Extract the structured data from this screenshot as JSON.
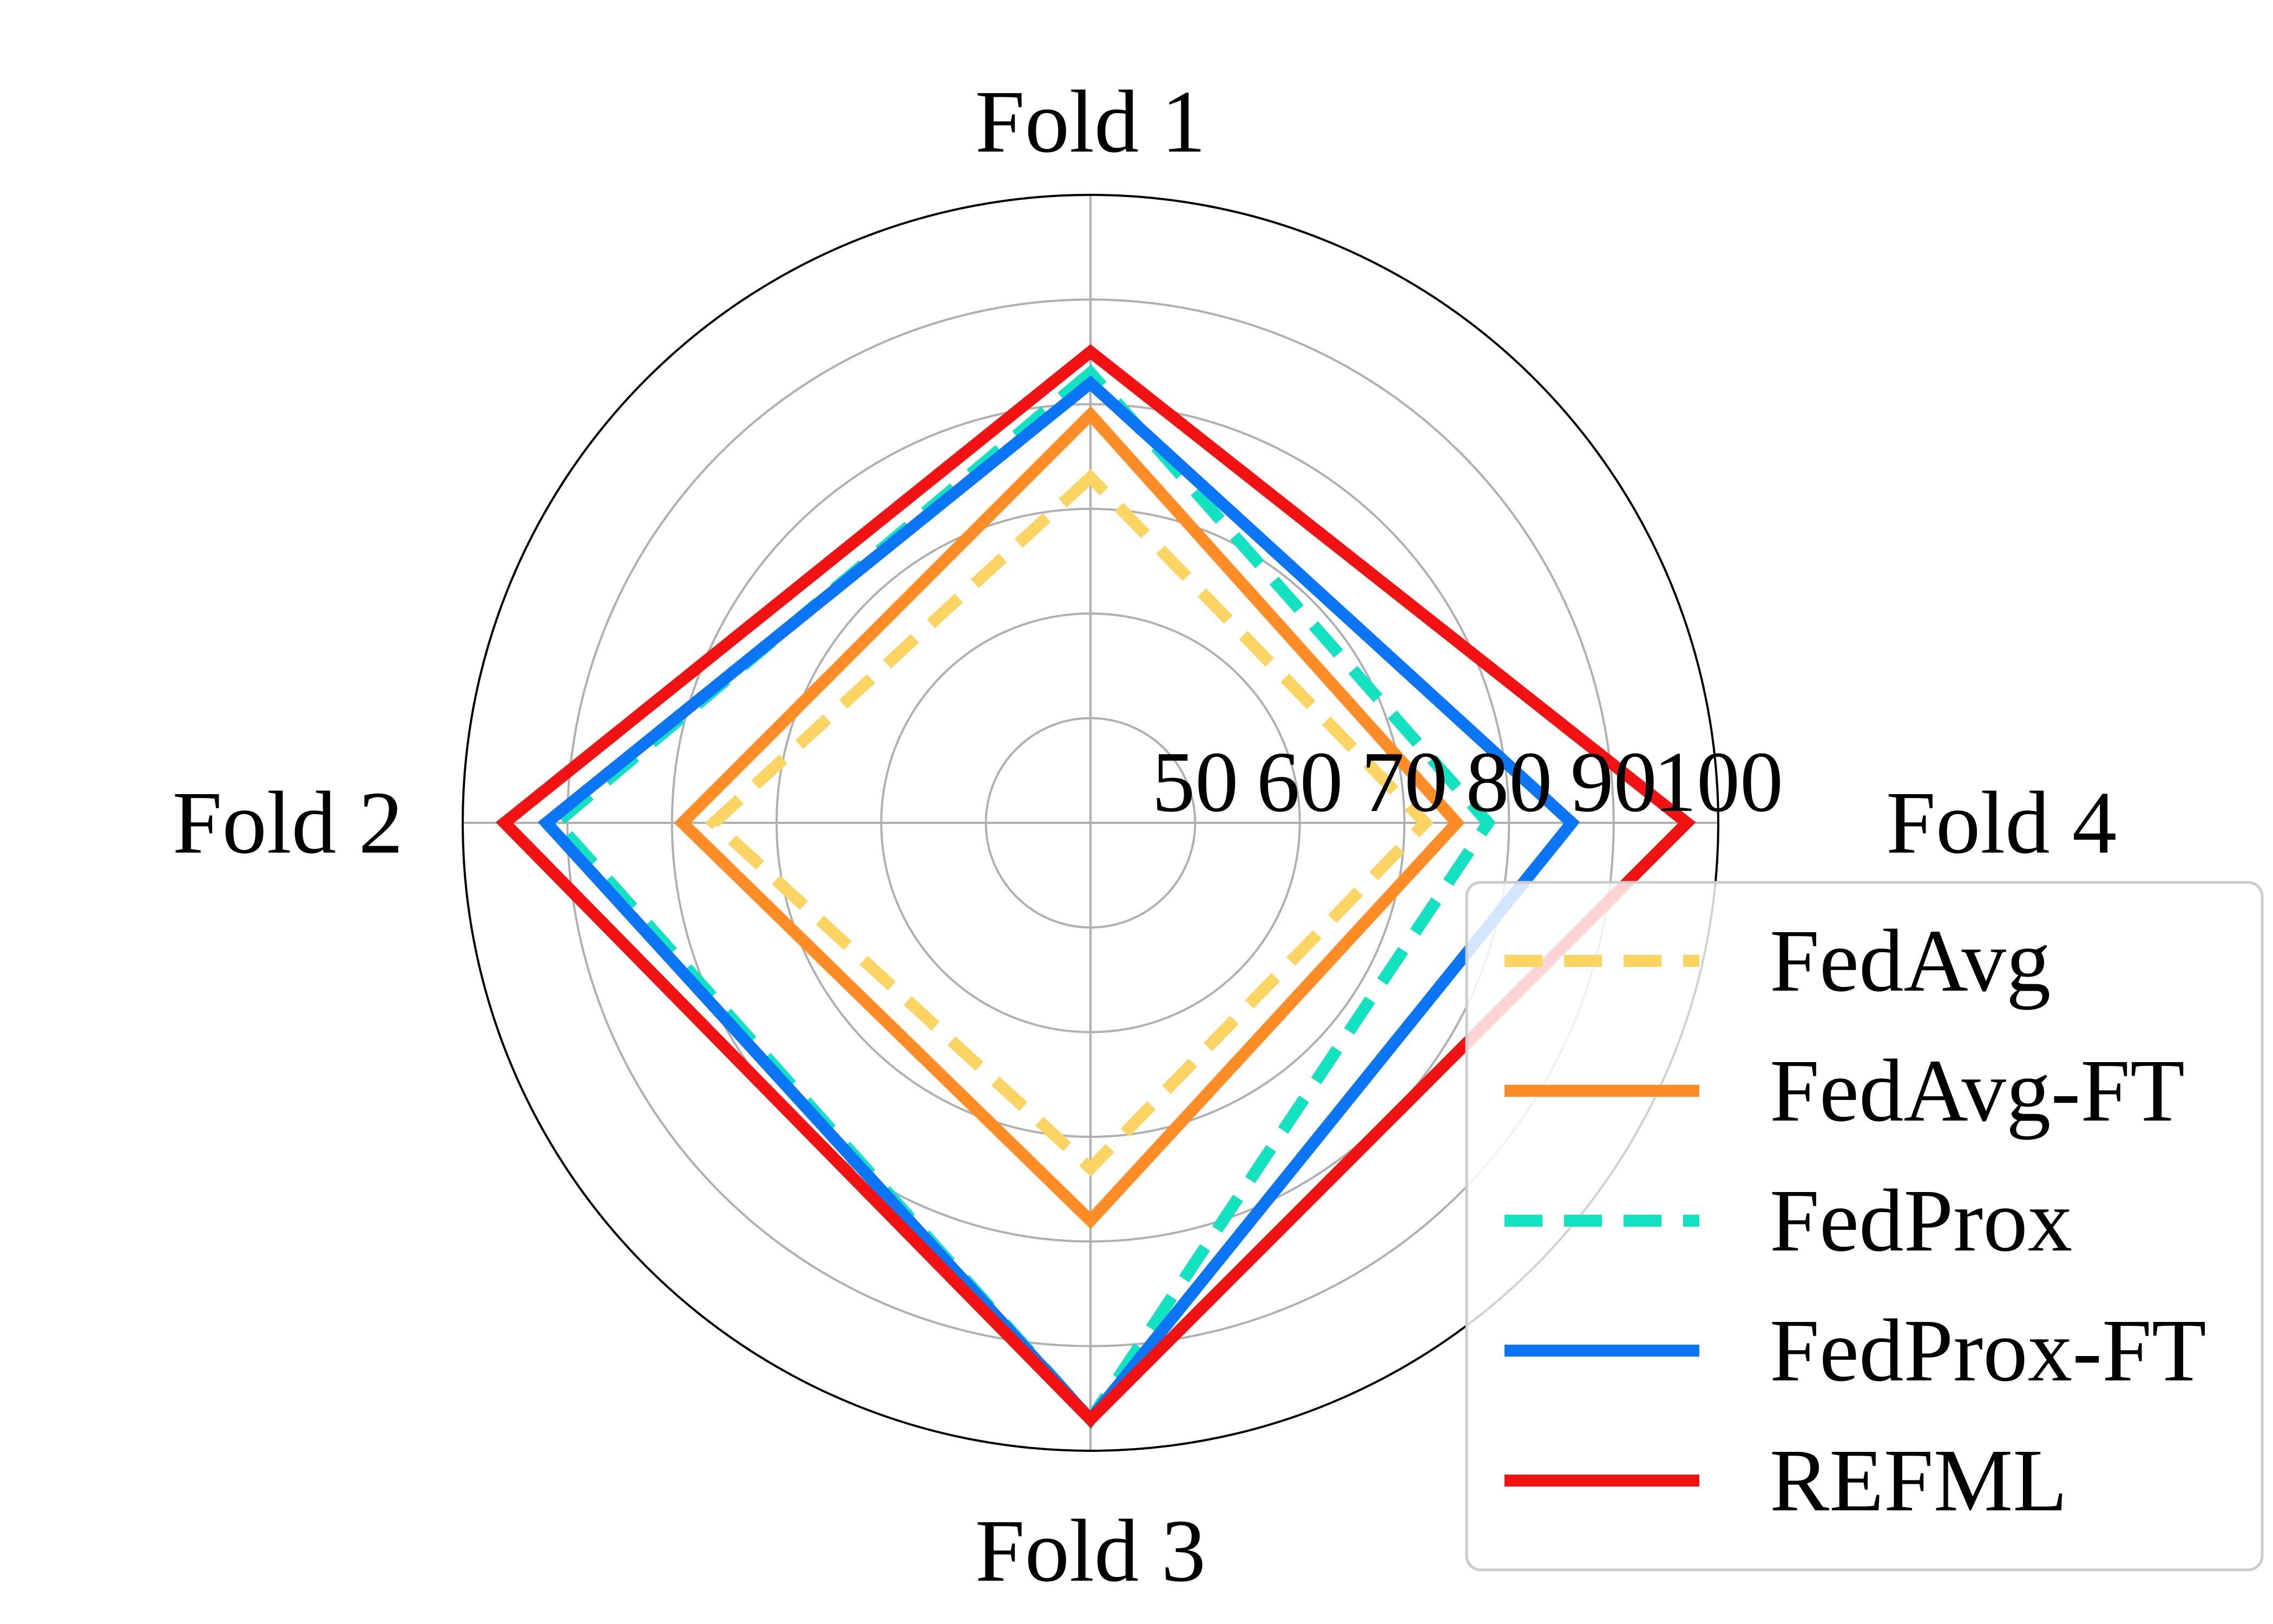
{
  "chart_data": {
    "type": "radar",
    "axes": [
      "Fold 1",
      "Fold 2",
      "Fold 3",
      "Fold 4"
    ],
    "radial_ticks": [
      50,
      60,
      70,
      80,
      90,
      100
    ],
    "rlim": [
      40,
      100
    ],
    "grid": true,
    "legend_position": "lower-right",
    "series": [
      {
        "name": "FedAvg",
        "values": [
          73,
          76,
          73,
          72
        ],
        "color": "#fcd462",
        "dash": "dashed"
      },
      {
        "name": "FedAvg-FT",
        "values": [
          79,
          79,
          78,
          75
        ],
        "color": "#ff8c24",
        "dash": "solid"
      },
      {
        "name": "FedProx",
        "values": [
          83,
          91,
          97,
          78
        ],
        "color": "#13e2c0",
        "dash": "dashed"
      },
      {
        "name": "FedProx-FT",
        "values": [
          82,
          92,
          97,
          86
        ],
        "color": "#0a76f5",
        "dash": "solid"
      },
      {
        "name": "REFML",
        "values": [
          85,
          96,
          97,
          97
        ],
        "color": "#f21212",
        "dash": "solid"
      }
    ]
  }
}
